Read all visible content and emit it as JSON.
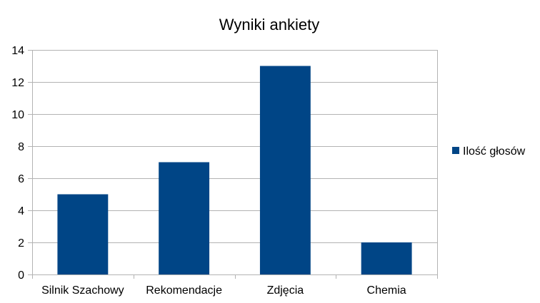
{
  "chart_data": {
    "type": "bar",
    "title": "Wyniki ankiety",
    "xlabel": "",
    "ylabel": "",
    "categories": [
      "Silnik Szachowy",
      "Rekomendacje",
      "Zdjęcia",
      "Chemia"
    ],
    "series": [
      {
        "name": "Ilość głosów",
        "values": [
          5,
          7,
          13,
          2
        ],
        "color": "#004586"
      }
    ],
    "ylim": [
      0,
      14
    ],
    "yticks": [
      0,
      2,
      4,
      6,
      8,
      10,
      12,
      14
    ],
    "grid": true,
    "legend_position": "right"
  },
  "colors": {
    "grid": "#b3b3b3",
    "axis": "#b3b3b3",
    "bar": "#004586"
  }
}
